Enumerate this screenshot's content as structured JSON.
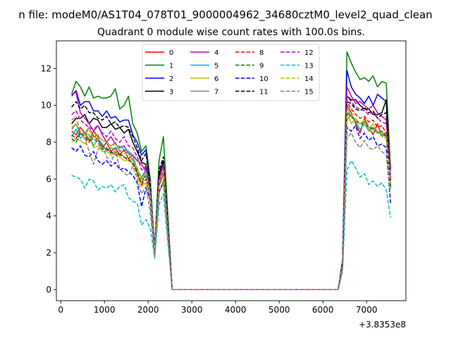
{
  "figure": {
    "suptitle": "n file: modeM0/AS1T04_078T01_9000004962_34680cztM0_level2_quad_clean"
  },
  "chart_data": {
    "type": "line",
    "title": "Quadrant 0 module wise count rates with 100.0s bins.",
    "xlabel": "",
    "ylabel": "",
    "x_offset_label": "+3.8353e8",
    "xlim": [
      -100,
      7900
    ],
    "ylim": [
      -0.6,
      13.5
    ],
    "xticks": [
      0,
      1000,
      2000,
      3000,
      4000,
      5000,
      6000,
      7000
    ],
    "yticks": [
      0,
      2,
      4,
      6,
      8,
      10,
      12
    ],
    "grid": false,
    "legend": {
      "placement": "top-center",
      "ncol": 4
    },
    "x": [
      250,
      350,
      450,
      550,
      650,
      750,
      850,
      950,
      1050,
      1150,
      1250,
      1350,
      1450,
      1550,
      1650,
      1750,
      1850,
      1950,
      2050,
      2150,
      2250,
      2350,
      2550,
      6350,
      6450,
      6550,
      6650,
      6750,
      6850,
      6950,
      7050,
      7150,
      7250,
      7350,
      7450,
      7550
    ],
    "series": [
      {
        "name": "0",
        "color": "#ff0000",
        "dash": "solid",
        "values": [
          8.6,
          8.4,
          8.8,
          8.5,
          8.1,
          8.6,
          8.3,
          7.7,
          8.0,
          7.5,
          7.7,
          7.3,
          7.6,
          7.1,
          7.3,
          6.3,
          5.6,
          6.7,
          5.2,
          2.0,
          5.9,
          6.8,
          0,
          0,
          1.2,
          10.0,
          9.6,
          9.0,
          8.5,
          9.3,
          8.8,
          8.4,
          9.0,
          8.3,
          8.5,
          6.0
        ]
      },
      {
        "name": "1",
        "color": "#008000",
        "dash": "solid",
        "values": [
          10.6,
          11.3,
          11.0,
          10.5,
          11.0,
          10.4,
          10.5,
          10.4,
          10.4,
          10.5,
          10.9,
          9.8,
          10.0,
          10.5,
          9.0,
          8.5,
          7.5,
          7.8,
          6.0,
          2.2,
          7.0,
          8.3,
          0,
          0,
          1.6,
          12.9,
          12.3,
          11.8,
          11.4,
          11.5,
          11.3,
          11.6,
          11.0,
          11.3,
          11.2,
          6.5
        ]
      },
      {
        "name": "2",
        "color": "#0000ff",
        "dash": "solid",
        "values": [
          10.5,
          10.8,
          10.0,
          10.2,
          10.2,
          9.7,
          9.7,
          9.4,
          9.7,
          9.3,
          9.4,
          9.1,
          9.2,
          9.2,
          8.4,
          8.0,
          7.3,
          7.6,
          5.5,
          2.2,
          6.3,
          7.0,
          0,
          0,
          1.5,
          11.9,
          11.0,
          10.6,
          10.4,
          10.1,
          10.5,
          10.0,
          10.6,
          10.4,
          10.2,
          5.5
        ]
      },
      {
        "name": "3",
        "color": "#000000",
        "dash": "solid",
        "values": [
          9.0,
          9.3,
          9.3,
          9.5,
          9.0,
          9.3,
          9.2,
          8.8,
          8.8,
          9.0,
          8.7,
          8.8,
          8.5,
          8.7,
          8.0,
          7.5,
          6.9,
          6.8,
          5.5,
          2.0,
          6.2,
          7.0,
          0,
          0,
          1.4,
          10.5,
          10.3,
          10.3,
          10.0,
          9.8,
          9.8,
          9.5,
          9.5,
          9.6,
          10.3,
          5.8
        ]
      },
      {
        "name": "4",
        "color": "#bf00bf",
        "dash": "solid",
        "values": [
          10.6,
          10.7,
          9.6,
          9.3,
          9.0,
          8.6,
          8.9,
          8.4,
          8.0,
          8.3,
          7.9,
          7.7,
          7.8,
          7.4,
          7.3,
          7.0,
          6.8,
          6.4,
          5.2,
          2.1,
          6.0,
          6.8,
          0,
          0,
          1.3,
          11.0,
          10.5,
          10.1,
          10.2,
          10.0,
          9.8,
          10.0,
          9.6,
          9.4,
          9.2,
          6.5
        ]
      },
      {
        "name": "5",
        "color": "#00bfbf",
        "dash": "solid",
        "values": [
          8.3,
          8.7,
          8.2,
          8.5,
          8.4,
          7.8,
          8.2,
          7.9,
          7.5,
          7.7,
          7.6,
          7.8,
          7.6,
          7.5,
          7.3,
          6.5,
          6.1,
          6.5,
          5.8,
          2.2,
          5.9,
          6.2,
          0,
          0,
          1.2,
          9.2,
          9.5,
          9.1,
          8.7,
          9.0,
          8.6,
          8.8,
          8.5,
          8.5,
          8.3,
          5.5
        ]
      },
      {
        "name": "6",
        "color": "#bfbf00",
        "dash": "solid",
        "values": [
          8.0,
          8.2,
          8.1,
          7.9,
          8.3,
          7.7,
          7.8,
          7.5,
          7.5,
          7.3,
          7.4,
          7.2,
          7.0,
          7.0,
          7.1,
          6.2,
          5.6,
          5.8,
          5.0,
          1.9,
          5.2,
          6.0,
          0,
          0,
          1.2,
          9.6,
          9.0,
          9.3,
          9.0,
          9.2,
          8.7,
          9.0,
          8.5,
          8.5,
          8.5,
          5.8
        ]
      },
      {
        "name": "7",
        "color": "#808080",
        "dash": "solid",
        "values": [
          8.7,
          9.0,
          8.4,
          8.5,
          8.8,
          8.3,
          8.4,
          8.1,
          8.0,
          7.8,
          8.0,
          7.5,
          7.5,
          7.4,
          7.0,
          6.6,
          6.0,
          6.2,
          4.8,
          2.0,
          5.6,
          6.3,
          0,
          0,
          1.2,
          9.6,
          9.4,
          9.1,
          9.0,
          9.1,
          8.8,
          8.8,
          8.6,
          8.4,
          8.3,
          5.8
        ]
      },
      {
        "name": "8",
        "color": "#ff0000",
        "dash": "dashed",
        "values": [
          8.4,
          8.2,
          8.6,
          8.2,
          8.0,
          8.4,
          8.1,
          7.8,
          7.6,
          7.5,
          7.3,
          7.4,
          7.2,
          7.0,
          6.9,
          6.3,
          5.7,
          6.0,
          5.3,
          2.1,
          5.7,
          6.5,
          0,
          0,
          1.3,
          10.2,
          9.8,
          9.5,
          9.3,
          9.4,
          9.1,
          9.2,
          8.8,
          8.9,
          8.5,
          6.0
        ]
      },
      {
        "name": "9",
        "color": "#008000",
        "dash": "dashed",
        "values": [
          8.2,
          8.0,
          8.5,
          8.3,
          8.1,
          8.2,
          8.0,
          7.6,
          7.7,
          7.4,
          7.5,
          7.3,
          7.2,
          7.1,
          6.8,
          6.4,
          5.8,
          6.2,
          5.3,
          2.0,
          5.7,
          6.4,
          0,
          0,
          1.3,
          9.7,
          9.4,
          9.2,
          9.0,
          9.0,
          8.8,
          8.7,
          8.5,
          8.6,
          8.3,
          5.6
        ]
      },
      {
        "name": "10",
        "color": "#0000ff",
        "dash": "dashed",
        "values": [
          7.7,
          7.5,
          7.8,
          7.3,
          7.2,
          7.5,
          7.0,
          6.8,
          7.0,
          6.7,
          6.9,
          6.5,
          6.6,
          6.4,
          6.2,
          5.8,
          4.5,
          5.5,
          4.9,
          1.8,
          5.3,
          5.8,
          0,
          0,
          1.2,
          8.8,
          8.6,
          8.9,
          8.2,
          8.5,
          8.1,
          8.3,
          7.8,
          7.9,
          7.7,
          4.6
        ]
      },
      {
        "name": "11",
        "color": "#000000",
        "dash": "dashed",
        "values": [
          9.9,
          10.2,
          9.8,
          10.0,
          9.6,
          9.6,
          9.3,
          9.2,
          9.4,
          9.0,
          9.1,
          8.8,
          8.9,
          8.8,
          8.3,
          7.7,
          7.0,
          7.4,
          5.7,
          2.1,
          6.5,
          7.2,
          0,
          0,
          1.5,
          10.2,
          10.1,
          9.8,
          9.7,
          9.9,
          9.6,
          9.7,
          9.3,
          9.5,
          9.6,
          5.7
        ]
      },
      {
        "name": "12",
        "color": "#bf00bf",
        "dash": "dashed",
        "values": [
          9.5,
          9.7,
          9.2,
          9.0,
          8.8,
          8.7,
          8.9,
          8.5,
          8.3,
          8.6,
          8.2,
          8.0,
          8.3,
          7.8,
          7.7,
          7.2,
          6.5,
          6.7,
          5.3,
          2.0,
          6.0,
          6.8,
          0,
          0,
          1.4,
          10.5,
          10.2,
          9.9,
          9.8,
          9.7,
          9.5,
          9.6,
          9.3,
          9.1,
          9.0,
          6.0
        ]
      },
      {
        "name": "13",
        "color": "#00bfbf",
        "dash": "dashed",
        "values": [
          6.2,
          6.1,
          6.0,
          5.5,
          6.0,
          5.9,
          5.4,
          5.6,
          5.5,
          5.7,
          5.3,
          5.6,
          5.7,
          5.0,
          4.8,
          4.7,
          3.5,
          3.8,
          3.3,
          1.7,
          4.6,
          5.2,
          0,
          0,
          1.0,
          6.5,
          7.0,
          6.6,
          6.1,
          6.3,
          5.7,
          5.9,
          5.6,
          5.8,
          5.4,
          3.9
        ]
      },
      {
        "name": "14",
        "color": "#bfbf00",
        "dash": "dashed",
        "values": [
          8.8,
          9.0,
          8.6,
          8.4,
          8.7,
          8.2,
          8.4,
          8.1,
          8.0,
          7.8,
          7.9,
          7.6,
          7.4,
          7.3,
          7.1,
          6.6,
          6.0,
          6.3,
          5.2,
          2.0,
          5.8,
          6.4,
          0,
          0,
          1.3,
          9.8,
          9.5,
          9.2,
          9.0,
          9.0,
          8.8,
          8.5,
          8.6,
          8.3,
          8.2,
          5.7
        ]
      },
      {
        "name": "15",
        "color": "#808080",
        "dash": "dashed",
        "values": [
          9.2,
          9.4,
          8.5,
          8.2,
          7.5,
          6.8,
          7.6,
          7.8,
          7.2,
          6.9,
          7.5,
          6.6,
          6.3,
          6.2,
          6.7,
          6.0,
          5.2,
          5.6,
          4.2,
          1.8,
          5.2,
          5.9,
          0,
          0,
          1.1,
          8.2,
          8.5,
          8.0,
          7.7,
          8.1,
          7.7,
          7.6,
          7.8,
          7.5,
          7.3,
          5.0
        ]
      }
    ]
  }
}
